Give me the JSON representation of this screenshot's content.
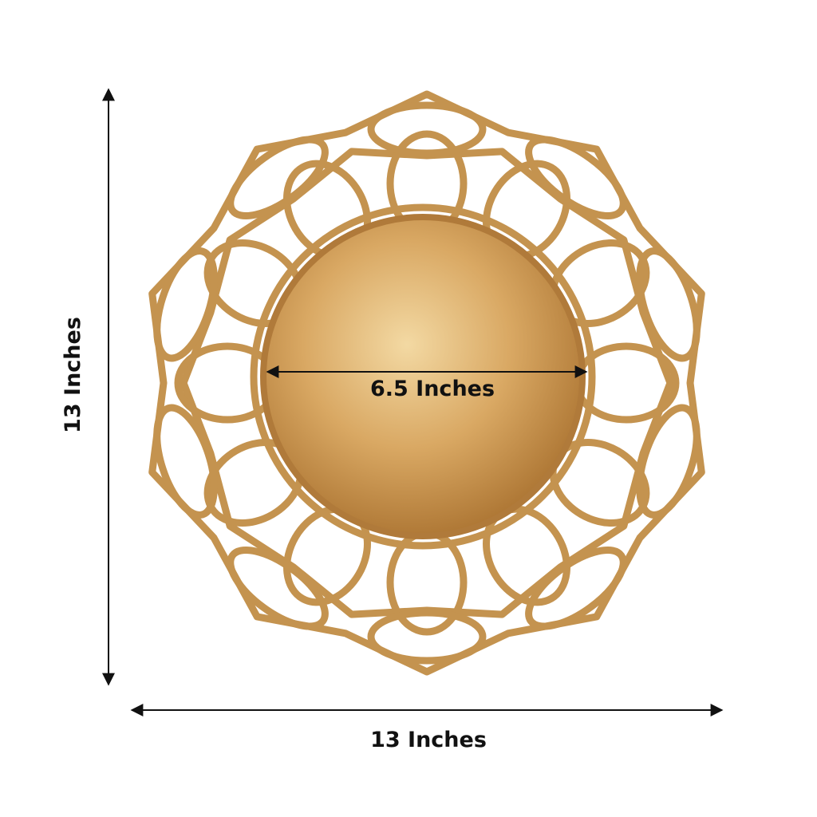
{
  "labels": {
    "height": "13 Inches",
    "width": "13 Inches",
    "inner_diameter": "6.5 Inches"
  }
}
